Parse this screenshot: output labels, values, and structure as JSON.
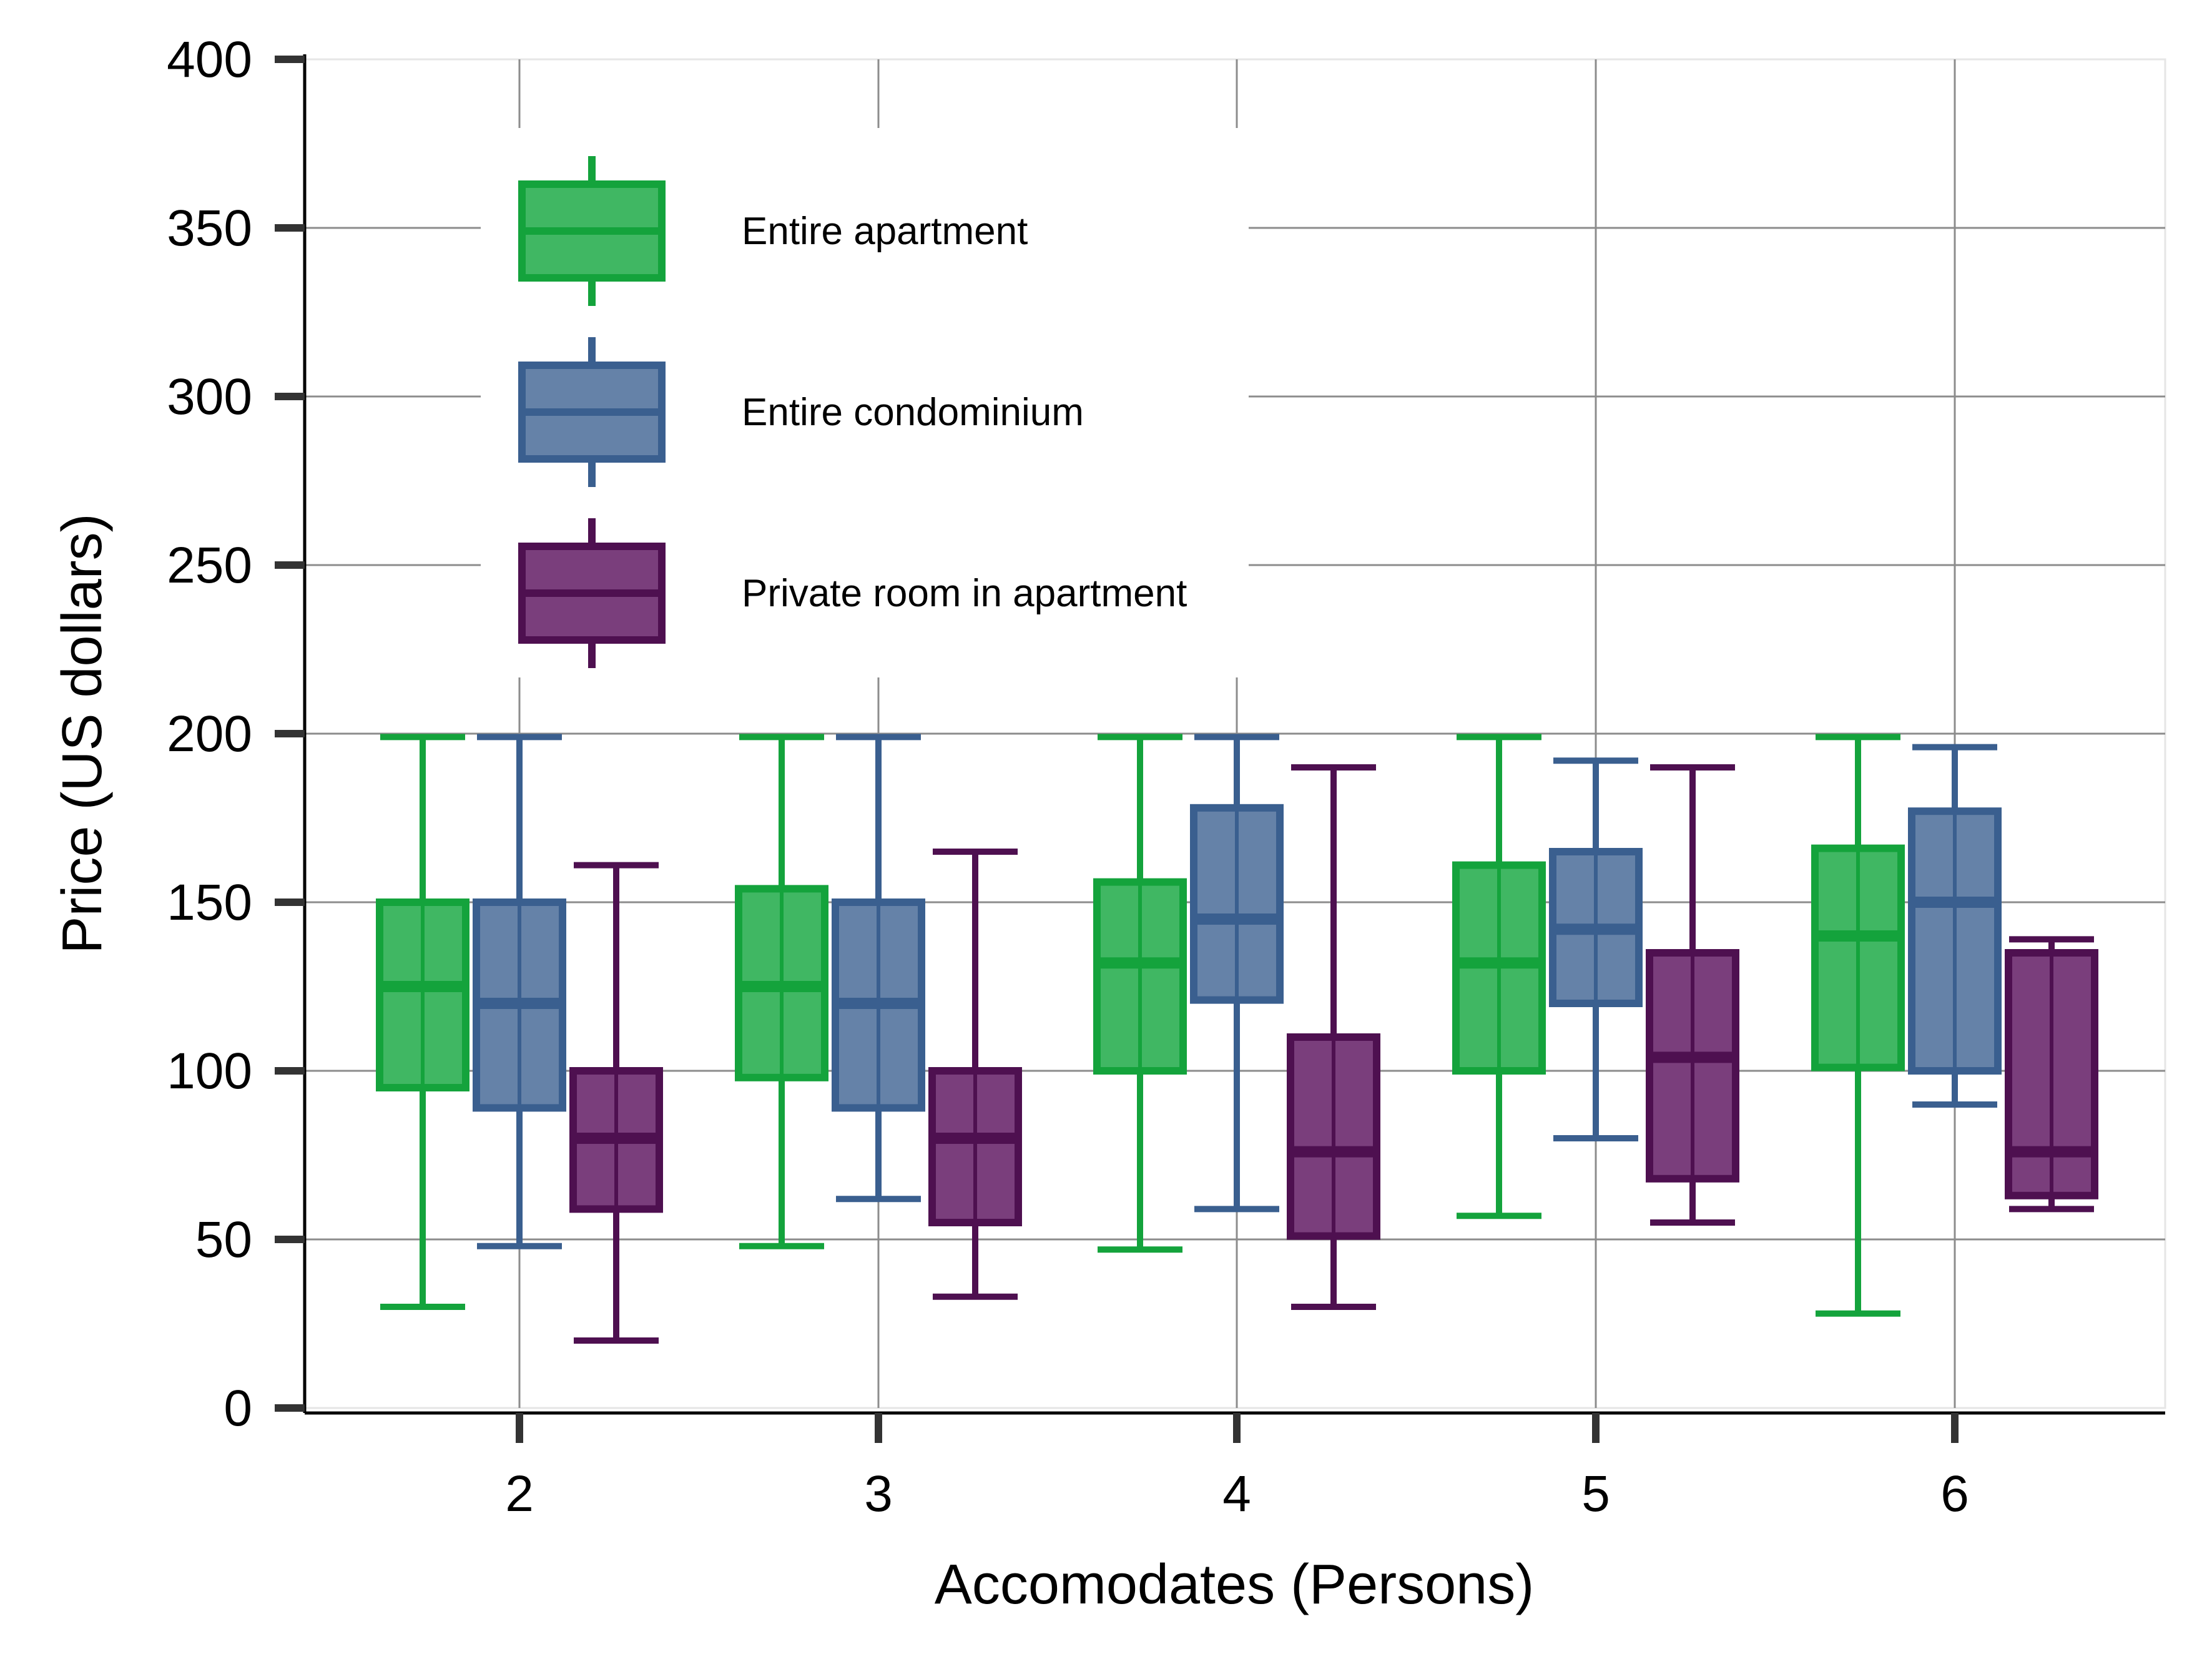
{
  "chart_data": {
    "type": "boxplot",
    "xlabel": "Accomodates (Persons)",
    "ylabel": "Price (US dollars)",
    "categories": [
      "2",
      "3",
      "4",
      "5",
      "6"
    ],
    "ylim": [
      0,
      400
    ],
    "yticks": [
      0,
      50,
      100,
      150,
      200,
      250,
      300,
      350,
      400
    ],
    "grid": true,
    "legend_position": "top-left",
    "series": [
      {
        "name": "Entire apartment",
        "color": "#14A33C",
        "fill": "#40B763",
        "boxes": [
          {
            "min": 30,
            "q1": 95,
            "median": 125,
            "q3": 150,
            "max": 199
          },
          {
            "min": 48,
            "q1": 98,
            "median": 125,
            "q3": 154,
            "max": 199
          },
          {
            "min": 47,
            "q1": 100,
            "median": 132,
            "q3": 156,
            "max": 199
          },
          {
            "min": 57,
            "q1": 100,
            "median": 132,
            "q3": 161,
            "max": 199
          },
          {
            "min": 28,
            "q1": 101,
            "median": 140,
            "q3": 166,
            "max": 199
          }
        ]
      },
      {
        "name": "Entire condominium",
        "color": "#3A5F8F",
        "fill": "#6582A8",
        "boxes": [
          {
            "min": 48,
            "q1": 89,
            "median": 120,
            "q3": 150,
            "max": 199
          },
          {
            "min": 62,
            "q1": 89,
            "median": 120,
            "q3": 150,
            "max": 199
          },
          {
            "min": 59,
            "q1": 121,
            "median": 145,
            "q3": 178,
            "max": 199
          },
          {
            "min": 80,
            "q1": 120,
            "median": 142,
            "q3": 165,
            "max": 192
          },
          {
            "min": 90,
            "q1": 100,
            "median": 150,
            "q3": 177,
            "max": 196
          }
        ]
      },
      {
        "name": "Private room in apartment",
        "color": "#4E1050",
        "fill": "#7A3E7C",
        "boxes": [
          {
            "min": 20,
            "q1": 59,
            "median": 80,
            "q3": 100,
            "max": 161
          },
          {
            "min": 33,
            "q1": 55,
            "median": 80,
            "q3": 100,
            "max": 165
          },
          {
            "min": 30,
            "q1": 51,
            "median": 76,
            "q3": 110,
            "max": 190
          },
          {
            "min": 55,
            "q1": 68,
            "median": 104,
            "q3": 135,
            "max": 190
          },
          {
            "min": 59,
            "q1": 63,
            "median": 76,
            "q3": 135,
            "max": 139
          }
        ]
      }
    ]
  }
}
